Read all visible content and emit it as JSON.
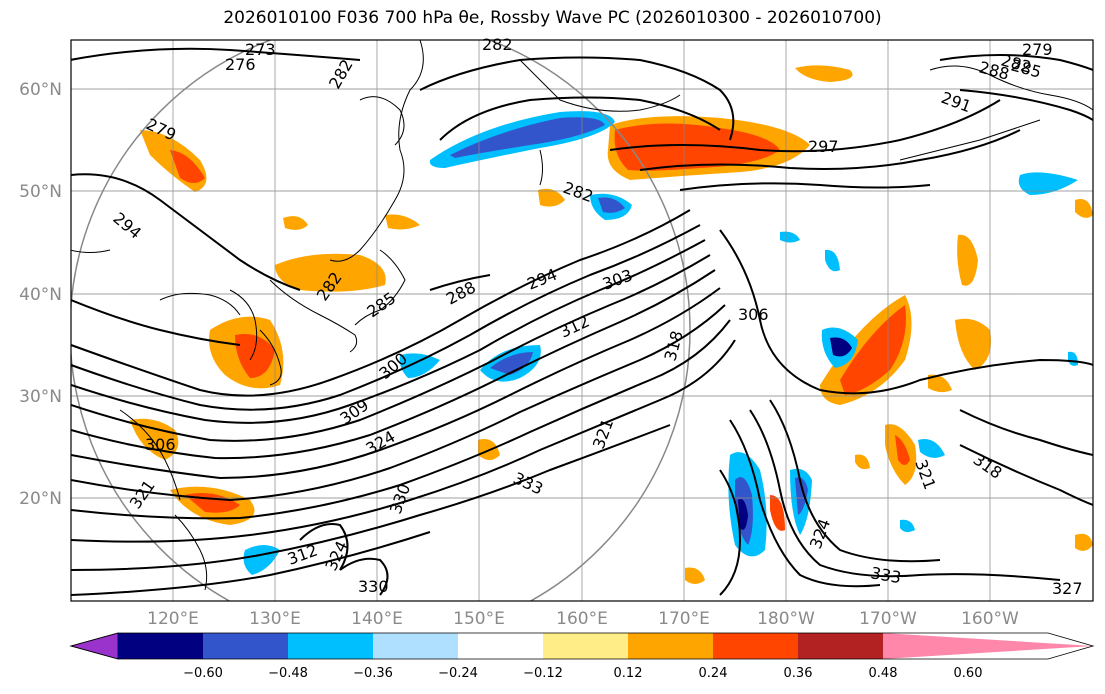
{
  "title": "2026010100 F036 700 hPa θe, Rossby Wave PC (2026010300 - 2026010700)",
  "lat_labels": [
    "60°N",
    "50°N",
    "40°N",
    "30°N",
    "20°N"
  ],
  "lon_labels": [
    "120°E",
    "130°E",
    "140°E",
    "150°E",
    "160°E",
    "170°E",
    "180°W",
    "170°W",
    "160°W"
  ],
  "colorbar": {
    "ticks": [
      "−0.60",
      "−0.48",
      "−0.36",
      "−0.24",
      "−0.12",
      "0.12",
      "0.24",
      "0.36",
      "0.48",
      "0.60"
    ],
    "colors": [
      "#9933cc",
      "#000080",
      "#3355cc",
      "#00bfff",
      "#b0e0ff",
      "#ffffff",
      "#ffee88",
      "#ffa500",
      "#ff4500",
      "#b22222",
      "#ff88aa"
    ]
  },
  "contour_labels": [
    {
      "text": "273"
    },
    {
      "text": "276"
    },
    {
      "text": "279"
    },
    {
      "text": "282"
    },
    {
      "text": "282"
    },
    {
      "text": "282"
    },
    {
      "text": "282"
    },
    {
      "text": "279"
    },
    {
      "text": "282"
    },
    {
      "text": "285"
    },
    {
      "text": "288"
    },
    {
      "text": "291"
    },
    {
      "text": "297"
    },
    {
      "text": "294"
    },
    {
      "text": "285"
    },
    {
      "text": "288"
    },
    {
      "text": "294"
    },
    {
      "text": "303"
    },
    {
      "text": "312"
    },
    {
      "text": "306"
    },
    {
      "text": "300"
    },
    {
      "text": "309"
    },
    {
      "text": "318"
    },
    {
      "text": "324"
    },
    {
      "text": "306"
    },
    {
      "text": "321"
    },
    {
      "text": "333"
    },
    {
      "text": "330"
    },
    {
      "text": "321"
    },
    {
      "text": "318"
    },
    {
      "text": "321"
    },
    {
      "text": "324"
    },
    {
      "text": "333"
    },
    {
      "text": "327"
    },
    {
      "text": "324"
    },
    {
      "text": "330"
    },
    {
      "text": "312"
    }
  ]
}
